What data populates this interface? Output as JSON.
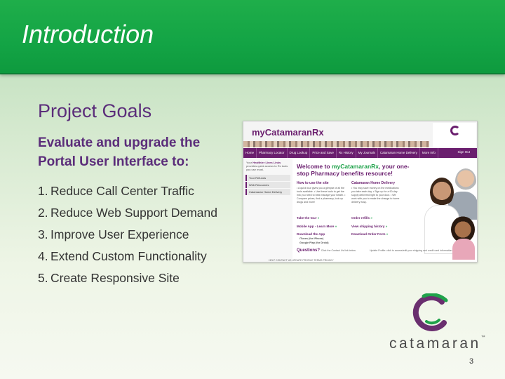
{
  "slide": {
    "title": "Introduction",
    "heading": "Project Goals",
    "subheading": "Evaluate and upgrade the Portal User Interface to:",
    "goals": [
      {
        "num": "1.",
        "text": "Reduce Call Center Traffic"
      },
      {
        "num": "2.",
        "text": "Reduce Web Support Demand"
      },
      {
        "num": "3.",
        "text": "Improve User Experience"
      },
      {
        "num": "4.",
        "text": "Extend Custom Functionality"
      },
      {
        "num": "5.",
        "text": "Create Responsive Site"
      }
    ],
    "page_number": "3"
  },
  "portal": {
    "title": "myCatamaranRx",
    "nav": [
      "Home",
      "Pharmacy Locator",
      "Drug Lookup",
      "Price and Save",
      "Rx History",
      "My Journals",
      "Catamaran Home Delivery",
      "More Info"
    ],
    "sign_out": "Sign Out",
    "side_intro_prefix": "Your",
    "side_intro_bold": "Healthier Lives Links",
    "side_intro_suffix": "provides quick access to Rx tools you use most.",
    "side_links": [
      "Your Refunds",
      "Web Resources",
      "Catamaran Home Delivery"
    ],
    "welcome_prefix": "Welcome to",
    "welcome_brand": "myCatamaranRx",
    "welcome_suffix": ", your one-stop Pharmacy benefits resource!",
    "how_to_head": "How to use the site",
    "how_to_text": "• A quick tour gives you a glimpse of all the tools available. • Use these tools to get the info you need to best manage your health. • Compare prices, find a pharmacy, look up drugs and more!",
    "home_delivery_head": "Catamaran Home Delivery",
    "home_delivery_text": "• You may save money on the medications you take each day. • Sign up for a 90-day supply delivered right to your door. • We work with you to make the change to home delivery easy.",
    "links": {
      "tour": "Take the tour",
      "mobile": "Mobile App - Learn More",
      "download": "Download the App",
      "itunes": "iTunes (for iPhone)",
      "google": "Google Play (for Droid)",
      "refills": "Order refills",
      "shipping": "View shipping history",
      "order_form": "Download Order Form"
    },
    "arrow": "»",
    "questions": "Questions?",
    "questions_text": "Click the Contact Us link below",
    "profile_text": "Update Profile: click to access/edit your shipping and credit card information",
    "footer": "HELP  CONTACT US  UPDATE PROFILE  TERMS  PRIVACY"
  },
  "logo": {
    "word": "catamaran",
    "tm": "™"
  },
  "colors": {
    "title_green": "#13a445",
    "purple": "#5b2d7a",
    "portal_purple": "#6a1e6e",
    "logo_green": "#1fa24a"
  }
}
